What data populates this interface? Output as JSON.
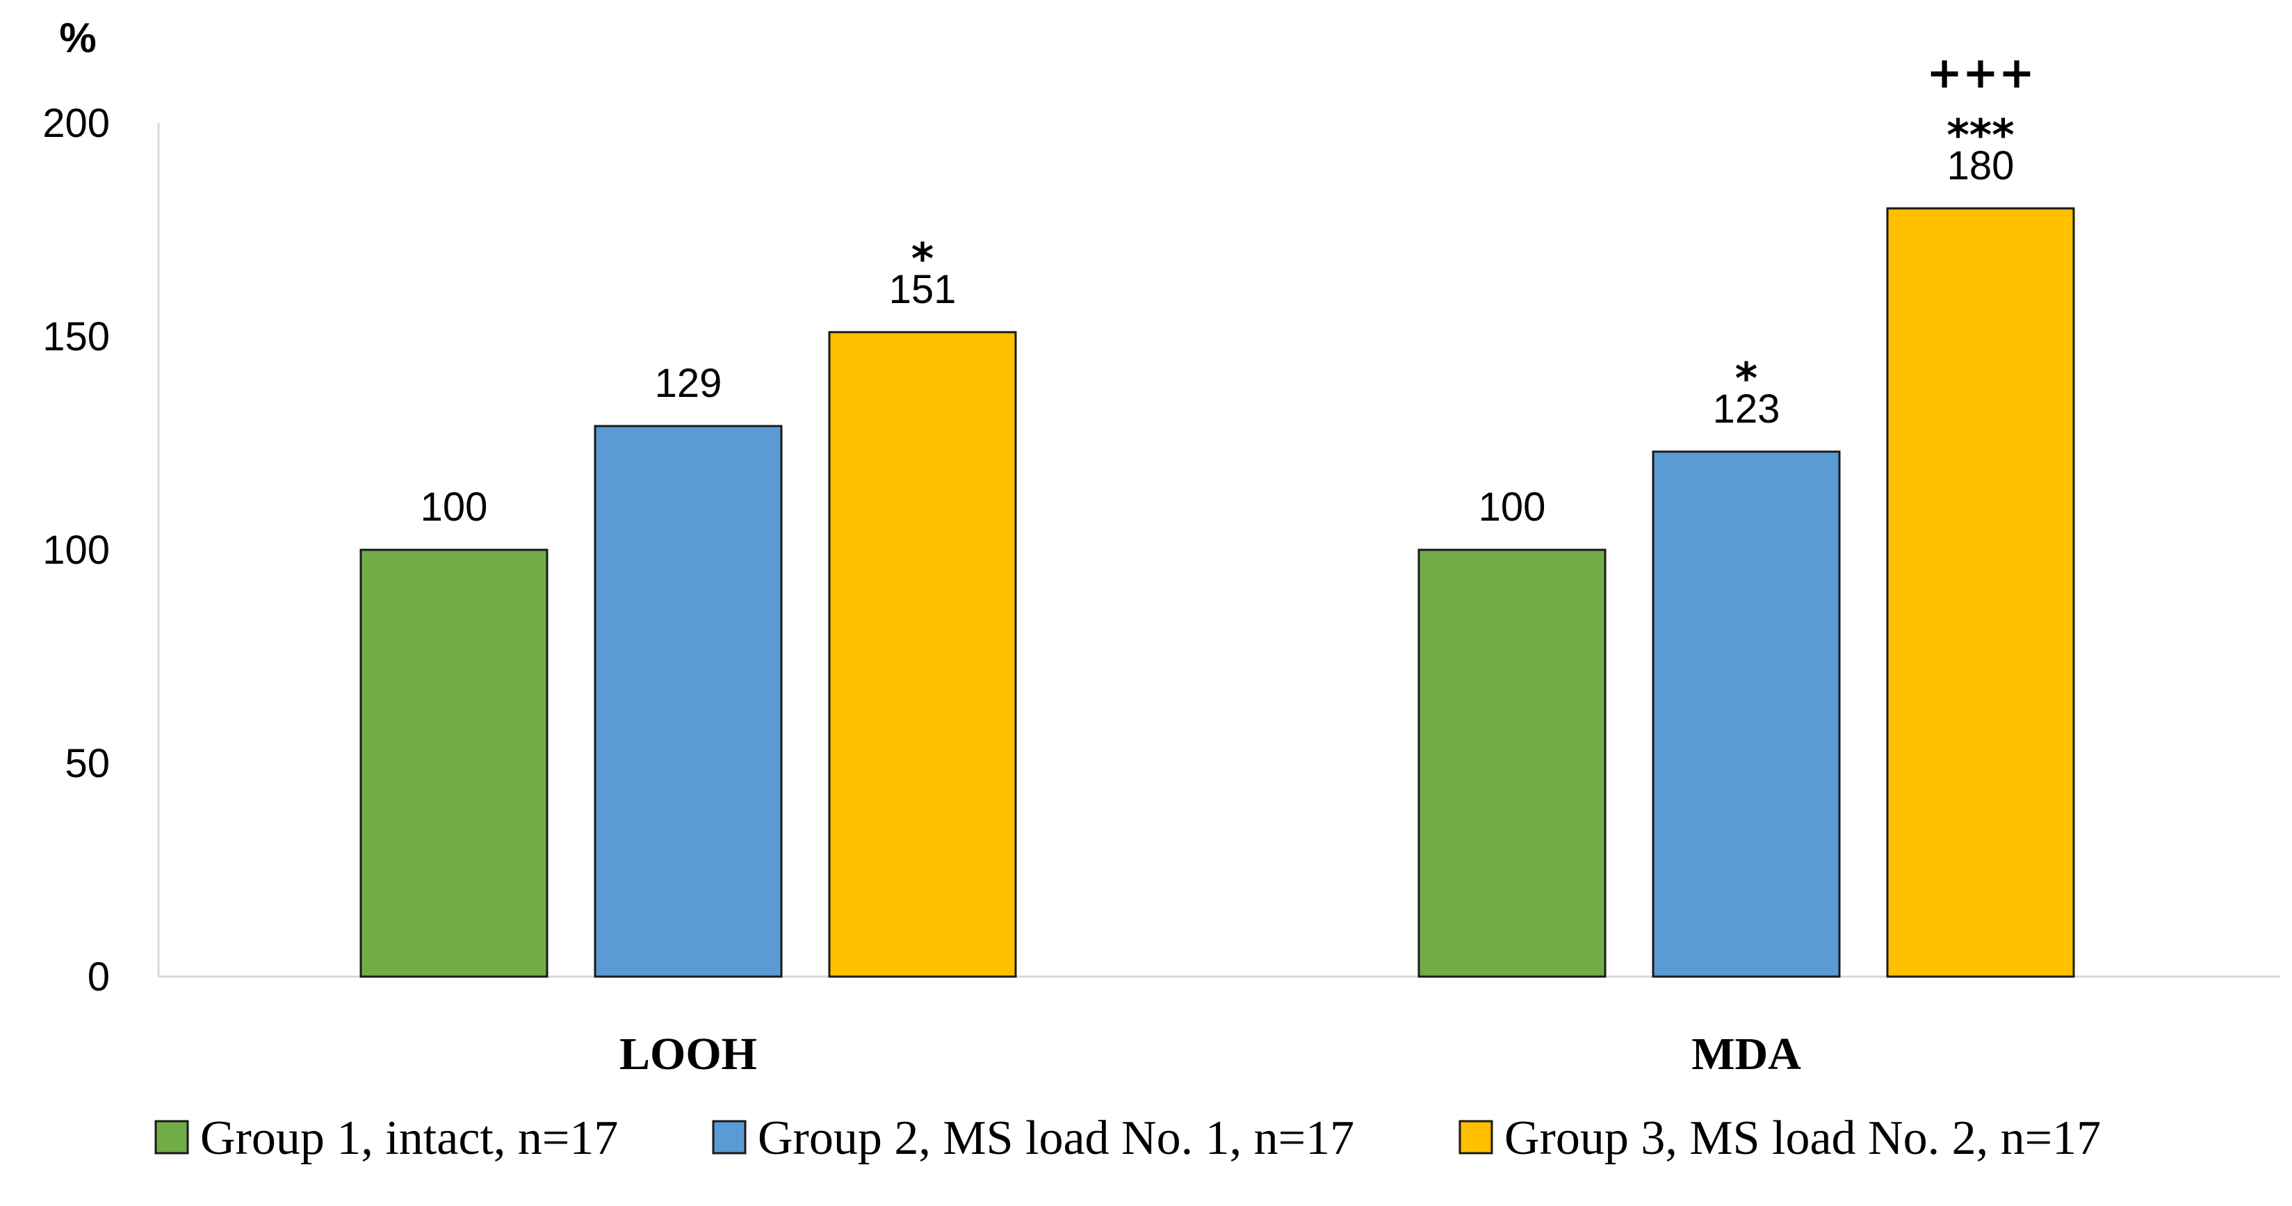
{
  "chart_data": {
    "type": "bar",
    "title": "",
    "xlabel": "",
    "ylabel": "%",
    "ylim": [
      0,
      200
    ],
    "yticks": [
      "0",
      "50",
      "100",
      "150",
      "200"
    ],
    "categories": [
      "LOOH",
      "MDA"
    ],
    "series": [
      {
        "name": "Group 1, intact, n=17",
        "color": "#70ad47",
        "values": [
          100,
          100
        ],
        "labels": [
          "100",
          "100"
        ],
        "sig": [
          [],
          []
        ]
      },
      {
        "name": "Group 2, MS load No. 1, n=17",
        "color": "#5b9bd5",
        "values": [
          129,
          123
        ],
        "labels": [
          "129",
          "123"
        ],
        "sig": [
          [],
          [
            "*"
          ]
        ]
      },
      {
        "name": "Group 3, MS load No. 2, n=17",
        "color": "#ffc000",
        "values": [
          151,
          180
        ],
        "labels": [
          "151",
          "180"
        ],
        "sig": [
          [
            "*"
          ],
          [
            "***",
            "+++"
          ]
        ]
      }
    ],
    "legend_position": "bottom"
  }
}
